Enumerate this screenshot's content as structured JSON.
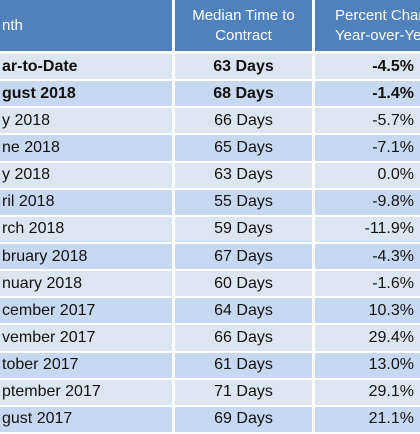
{
  "table": {
    "header": {
      "col1": "nth",
      "col2": [
        "Median Time to",
        "Contract"
      ],
      "col3": [
        "Percent Chan",
        "Year-over-Ye"
      ]
    },
    "rows": [
      [
        "ar-to-Date",
        "63 Days",
        "-4.5%"
      ],
      [
        "gust 2018",
        "68 Days",
        "-1.4%"
      ],
      [
        "y 2018",
        "66 Days",
        "-5.7%"
      ],
      [
        "ne 2018",
        "65 Days",
        "-7.1%"
      ],
      [
        "y 2018",
        "63 Days",
        "0.0%"
      ],
      [
        "ril 2018",
        "55 Days",
        "-9.8%"
      ],
      [
        "rch 2018",
        "59 Days",
        "-11.9%"
      ],
      [
        "bruary 2018",
        "67 Days",
        "-4.3%"
      ],
      [
        "nuary 2018",
        "60 Days",
        "-1.6%"
      ],
      [
        "cember 2017",
        "64 Days",
        "10.3%"
      ],
      [
        "vember 2017",
        "66 Days",
        "29.4%"
      ],
      [
        "tober 2017",
        "61 Days",
        "13.0%"
      ],
      [
        "ptember 2017",
        "71 Days",
        "29.1%"
      ],
      [
        "gust 2017",
        "69 Days",
        "21.1%"
      ]
    ],
    "bold_rows": 2
  }
}
